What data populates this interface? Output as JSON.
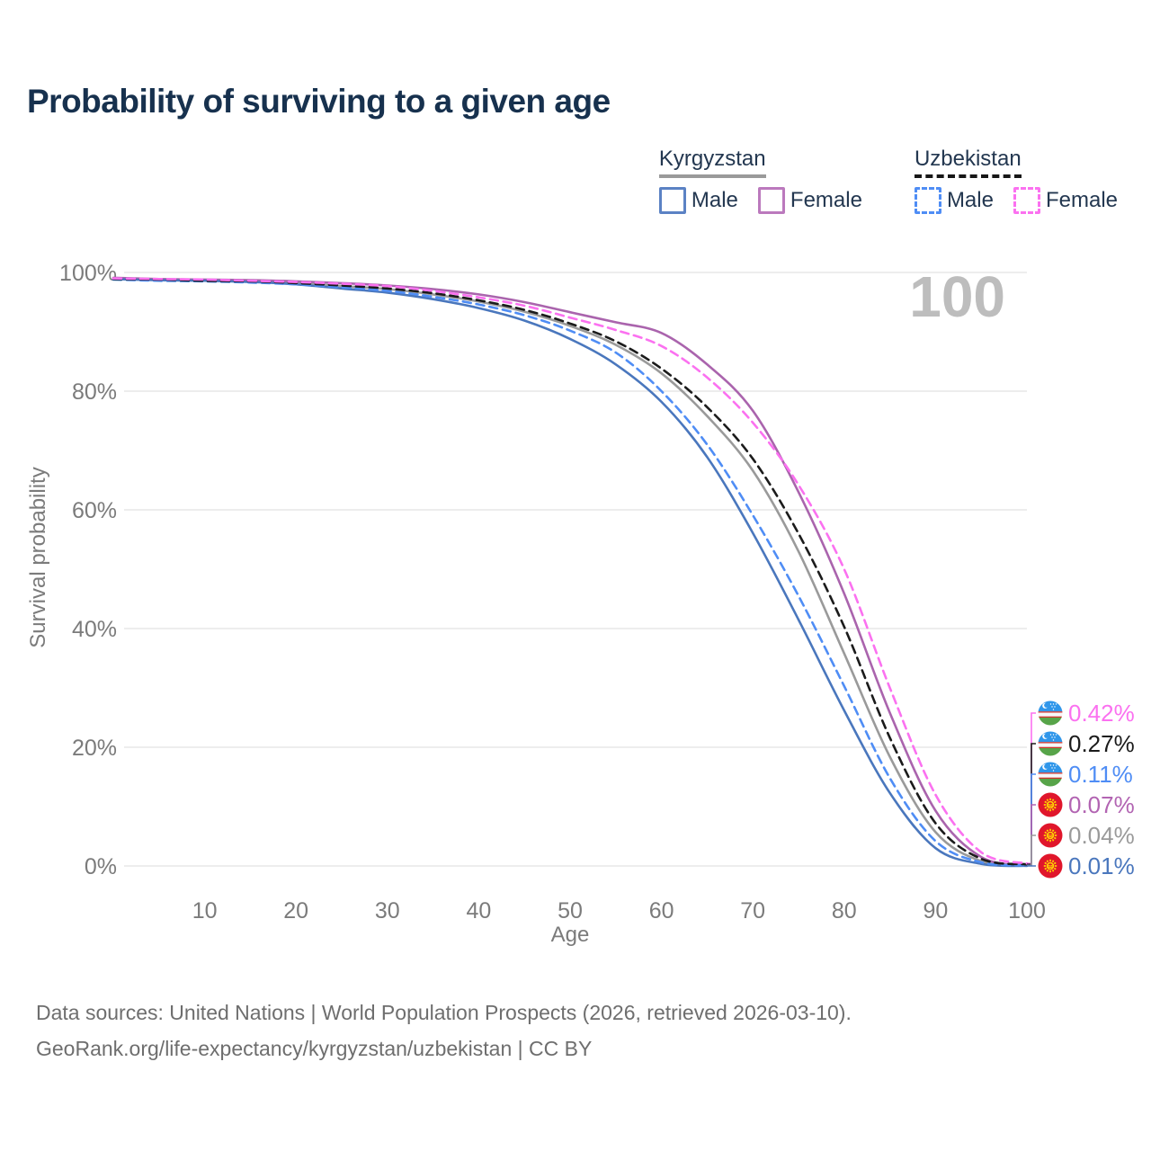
{
  "title": "Probability of surviving to a given age",
  "watermark": "100",
  "colors": {
    "title": "#17314e",
    "legend_text": "#233750",
    "axis_text": "#7b7b7b",
    "gridline": "#e7e7e7",
    "watermark": "#bdbdbd",
    "footer_text": "#6e6e6e"
  },
  "legend": {
    "groups": [
      {
        "name": "Kyrgyzstan",
        "line_style": "solid",
        "accent_color": "#9a9a9a",
        "items": [
          {
            "label": "Male",
            "swatch_color": "#5b82c4",
            "swatch_style": "solid"
          },
          {
            "label": "Female",
            "swatch_color": "#bb79bd",
            "swatch_style": "solid"
          }
        ]
      },
      {
        "name": "Uzbekistan",
        "line_style": "dashed",
        "accent_color": "#171717",
        "items": [
          {
            "label": "Male",
            "swatch_color": "#4f8df5",
            "swatch_style": "dashed"
          },
          {
            "label": "Female",
            "swatch_color": "#fb71f0",
            "swatch_style": "dashed"
          }
        ]
      }
    ]
  },
  "chart_data": {
    "type": "line",
    "title": "Probability of surviving to a given age",
    "xlabel": "Age",
    "ylabel": "Survival probability",
    "xlim": [
      0,
      100
    ],
    "ylim": [
      0,
      100
    ],
    "x_ticks": [
      10,
      20,
      30,
      40,
      50,
      60,
      70,
      80,
      90,
      100
    ],
    "y_ticks": [
      0,
      20,
      40,
      60,
      80,
      100
    ],
    "y_tick_suffix": "%",
    "grid": "horizontal",
    "legend_position": "top-right",
    "hover_age_indicator": "100",
    "x": [
      0,
      5,
      10,
      15,
      20,
      25,
      30,
      35,
      40,
      45,
      50,
      55,
      60,
      65,
      70,
      75,
      80,
      85,
      90,
      95,
      100
    ],
    "series": [
      {
        "id": "kyrgyzstan-both",
        "name": "Kyrgyzstan",
        "country": "Kyrgyzstan",
        "sex": "Both",
        "color": "#9a9a9a",
        "line_style": "solid",
        "values": [
          99.0,
          98.8,
          98.7,
          98.5,
          98.2,
          97.7,
          97.2,
          96.3,
          95.1,
          93.4,
          91.0,
          87.8,
          83.0,
          75.8,
          66.6,
          53.0,
          35.8,
          18.4,
          5.7,
          0.8,
          0.04
        ]
      },
      {
        "id": "kyrgyzstan-female",
        "name": "Kyrgyzstan Female",
        "country": "Kyrgyzstan",
        "sex": "Female",
        "color": "#aa64ad",
        "line_style": "solid",
        "values": [
          99.1,
          98.9,
          98.8,
          98.7,
          98.5,
          98.2,
          97.8,
          97.2,
          96.3,
          95.0,
          93.3,
          91.6,
          89.8,
          84.5,
          76.7,
          63.0,
          45.9,
          25.8,
          9.3,
          1.5,
          0.07
        ]
      },
      {
        "id": "kyrgyzstan-male",
        "name": "Kyrgyzstan Male",
        "country": "Kyrgyzstan",
        "sex": "Male",
        "color": "#4a77bd",
        "line_style": "solid",
        "values": [
          98.9,
          98.7,
          98.6,
          98.4,
          98.0,
          97.3,
          96.6,
          95.5,
          94.0,
          91.9,
          88.8,
          84.5,
          78.2,
          68.9,
          56.1,
          41.5,
          26.2,
          12.3,
          3.0,
          0.35,
          0.01
        ]
      },
      {
        "id": "uzbekistan-male",
        "name": "Uzbekistan Male",
        "country": "Uzbekistan",
        "sex": "Male",
        "color": "#4f8df5",
        "line_style": "dashed",
        "values": [
          98.8,
          98.6,
          98.5,
          98.3,
          98.0,
          97.5,
          96.9,
          95.9,
          94.6,
          92.8,
          90.2,
          86.5,
          80.0,
          71.0,
          59.1,
          45.5,
          30.3,
          14.8,
          4.2,
          0.6,
          0.11
        ]
      },
      {
        "id": "uzbekistan-both",
        "name": "Uzbekistan",
        "country": "Uzbekistan",
        "sex": "Both",
        "color": "#1b1b1b",
        "line_style": "dashed",
        "values": [
          98.9,
          98.8,
          98.6,
          98.5,
          98.2,
          97.8,
          97.3,
          96.5,
          95.3,
          93.7,
          91.4,
          88.4,
          83.8,
          77.3,
          68.6,
          56.0,
          40.3,
          21.6,
          7.2,
          1.2,
          0.27
        ]
      },
      {
        "id": "uzbekistan-female",
        "name": "Uzbekistan Female",
        "country": "Uzbekistan",
        "sex": "Female",
        "color": "#fb71f0",
        "line_style": "dashed",
        "values": [
          99.0,
          98.9,
          98.8,
          98.6,
          98.4,
          98.1,
          97.7,
          96.9,
          95.8,
          94.4,
          92.4,
          90.3,
          87.6,
          82.3,
          74.7,
          64.2,
          50.0,
          30.0,
          12.0,
          2.3,
          0.42
        ]
      }
    ]
  },
  "end_labels": [
    {
      "flag": "uzbekistan-flag-icon",
      "series_id": "uzbekistan-female",
      "value": "0.42%",
      "color": "#fb71f0"
    },
    {
      "flag": "uzbekistan-flag-icon",
      "series_id": "uzbekistan-both",
      "value": "0.27%",
      "color": "#1b1b1b"
    },
    {
      "flag": "uzbekistan-flag-icon",
      "series_id": "uzbekistan-male",
      "value": "0.11%",
      "color": "#4f8df5"
    },
    {
      "flag": "kyrgyzstan-flag-icon",
      "series_id": "kyrgyzstan-female",
      "value": "0.07%",
      "color": "#b264b2"
    },
    {
      "flag": "kyrgyzstan-flag-icon",
      "series_id": "kyrgyzstan-both",
      "value": "0.04%",
      "color": "#9a9a9a"
    },
    {
      "flag": "kyrgyzstan-flag-icon",
      "series_id": "kyrgyzstan-male",
      "value": "0.01%",
      "color": "#4a77bd"
    }
  ],
  "footer": {
    "line1": "Data sources: United Nations | World Population Prospects (2026, retrieved 2026-03-10).",
    "line2": "GeoRank.org/life-expectancy/kyrgyzstan/uzbekistan | CC BY"
  }
}
